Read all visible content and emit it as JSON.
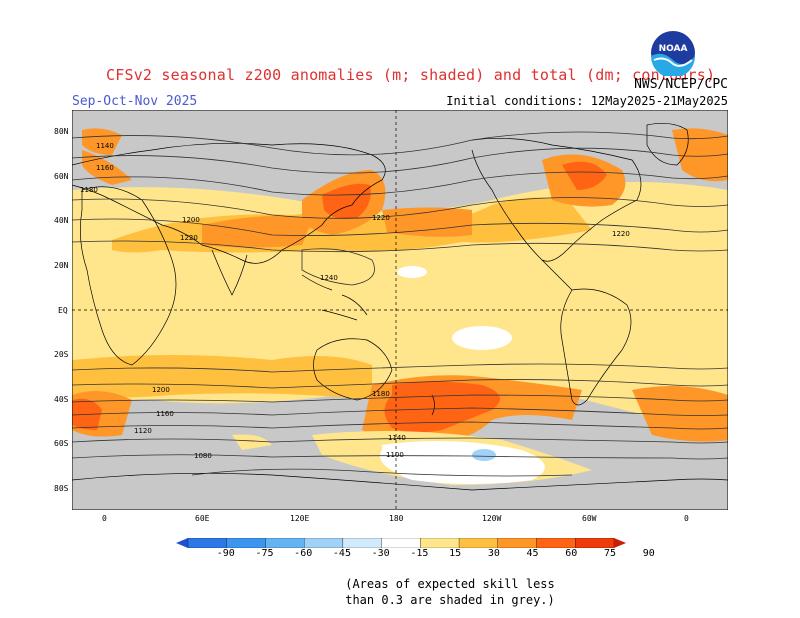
{
  "header": {
    "title": "CFSv2 seasonal z200 anomalies (m; shaded) and total (dm; contours)",
    "season": "Sep-Oct-Nov 2025",
    "initial_conditions": "Initial conditions: 12May2025-21May2025",
    "agency": "NWS/NCEP/CPC",
    "logo_text": "NOAA"
  },
  "axes": {
    "lat_labels": [
      "80N",
      "60N",
      "40N",
      "20N",
      "EQ",
      "20S",
      "40S",
      "60S",
      "80S"
    ],
    "lon_labels": [
      "0",
      "60E",
      "120E",
      "180",
      "120W",
      "60W",
      "0"
    ]
  },
  "contour_labels": [
    "1140",
    "1160",
    "1180",
    "1200",
    "1220",
    "1240",
    "1220",
    "1220",
    "1200",
    "1180",
    "1160",
    "1140",
    "1120",
    "1100",
    "1080"
  ],
  "colorbar": {
    "labels": [
      "-90",
      "-75",
      "-60",
      "-45",
      "-30",
      "-15",
      "15",
      "30",
      "45",
      "60",
      "75",
      "90"
    ],
    "colors": [
      "#1e50d2",
      "#2c78e6",
      "#3c96f0",
      "#64b4f4",
      "#a0d2f8",
      "#d2ebfc",
      "#ffffff",
      "#ffe68c",
      "#ffc040",
      "#ff9628",
      "#ff6414",
      "#ee3c0a",
      "#c81e08"
    ]
  },
  "note": {
    "line1": "(Areas of expected skill less",
    "line2": "than 0.3 are shaded in grey.)"
  },
  "colors": {
    "skill_grey": "#c8c8c8",
    "title_red": "#e03030",
    "season_blue": "#4a5ad0"
  }
}
